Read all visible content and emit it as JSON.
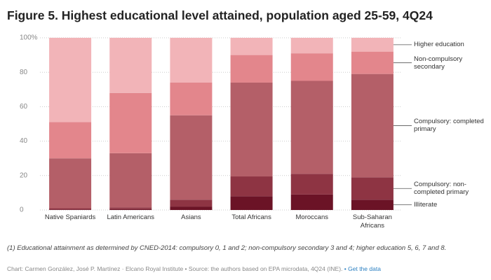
{
  "chart_data": {
    "type": "stacked_bar",
    "title": "Figure 5. Highest educational level attained, population aged 25-59, 4Q24",
    "categories": [
      "Native Spaniards",
      "Latin Americans",
      "Asians",
      "Total Africans",
      "Moroccans",
      "Sub-Saharan Africans"
    ],
    "series": [
      {
        "name": "Illiterate",
        "color": "#6b1326",
        "values": [
          0.3,
          0.5,
          2,
          8,
          9,
          6
        ]
      },
      {
        "name": "Compulsory: non-completed primary",
        "color": "#8e3443",
        "values": [
          0.7,
          1,
          4,
          11.5,
          12,
          13
        ]
      },
      {
        "name": "Compulsory: completed primary",
        "color": "#b45f68",
        "values": [
          29,
          31.5,
          49,
          54.5,
          54,
          60
        ]
      },
      {
        "name": "Non-compulsory secondary",
        "color": "#e3868c",
        "values": [
          21,
          35,
          19,
          16,
          16,
          13
        ]
      },
      {
        "name": "Higher education",
        "color": "#f2b4b8",
        "values": [
          49,
          32,
          26,
          10,
          9,
          8
        ]
      }
    ],
    "ylim": [
      0,
      100
    ],
    "yticks": [
      0,
      20,
      40,
      60,
      80,
      {
        "value": 100,
        "label": "100%"
      }
    ],
    "grid": true,
    "note": "(1) Educational attainment as determined by CNED-2014: compulsory 0, 1 and 2; non-compulsory secondary 3 and 4; higher education 5, 6, 7 and 8.",
    "source": "Chart: Carmen González, José P. Martínez · Elcano Royal Institute • Source: the authors based on EPA microdata, 4Q24 (INE).",
    "link": "• Get the data"
  }
}
